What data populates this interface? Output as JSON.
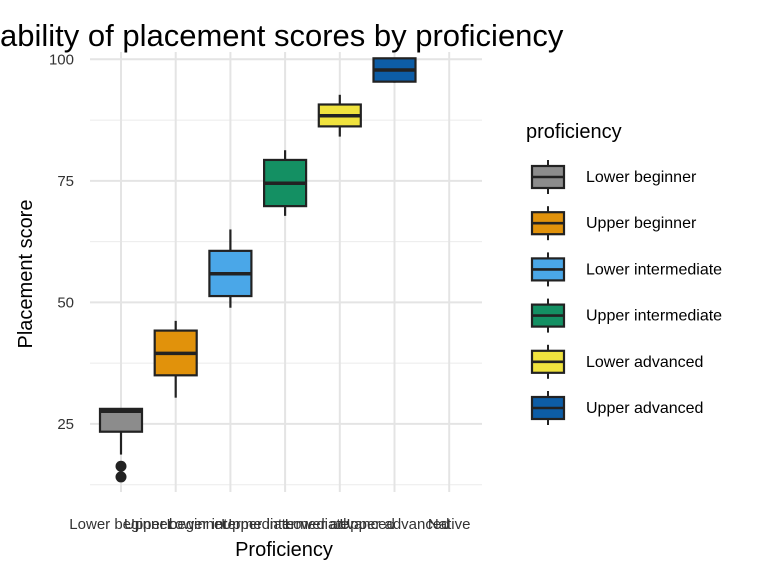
{
  "chart_data": {
    "type": "boxplot",
    "title": "ability of placement scores by proficiency",
    "xlabel": "Proficiency",
    "ylabel": "Placement score",
    "categories": [
      "Lower beginner",
      "Upper beginner",
      "Lower intermediate",
      "Upper intermediate",
      "Lower advanced",
      "Upper advanced",
      "Native"
    ],
    "x_tick_labels": [
      "Lower beginner",
      "Upper beginner",
      "Lower intermediate",
      "Upper intermediate",
      "Lower advanced",
      "Upper advanced",
      "Native"
    ],
    "y_ticks": [
      25,
      50,
      75,
      100
    ],
    "ylim": [
      11,
      101.5
    ],
    "grid": true,
    "legend": {
      "title": "proficiency",
      "position": "right",
      "entries": [
        "Lower beginner",
        "Upper beginner",
        "Lower intermediate",
        "Upper intermediate",
        "Lower advanced",
        "Upper advanced"
      ]
    },
    "series": [
      {
        "category": "Lower beginner",
        "color": "#8C8C8C",
        "whisker_low": 18.7,
        "q1": 23.4,
        "median": 27.6,
        "q3": 28.1,
        "whisker_high": 28.1,
        "outliers": [
          16.3,
          14.1
        ]
      },
      {
        "category": "Upper beginner",
        "color": "#E1920B",
        "whisker_low": 30.4,
        "q1": 35.0,
        "median": 39.5,
        "q3": 44.2,
        "whisker_high": 46.2,
        "outliers": []
      },
      {
        "category": "Lower intermediate",
        "color": "#4AA7E8",
        "whisker_low": 48.9,
        "q1": 51.3,
        "median": 55.9,
        "q3": 60.6,
        "whisker_high": 65.0,
        "outliers": []
      },
      {
        "category": "Upper intermediate",
        "color": "#149063",
        "whisker_low": 67.8,
        "q1": 69.8,
        "median": 74.5,
        "q3": 79.3,
        "whisker_high": 81.3,
        "outliers": []
      },
      {
        "category": "Lower advanced",
        "color": "#F0E33E",
        "whisker_low": 84.1,
        "q1": 86.2,
        "median": 88.4,
        "q3": 90.7,
        "whisker_high": 92.7,
        "outliers": []
      },
      {
        "category": "Upper advanced",
        "color": "#0D5DA6",
        "whisker_low": 95.2,
        "q1": 95.4,
        "median": 97.8,
        "q3": 100.2,
        "whisker_high": 100.2,
        "outliers": []
      }
    ]
  }
}
